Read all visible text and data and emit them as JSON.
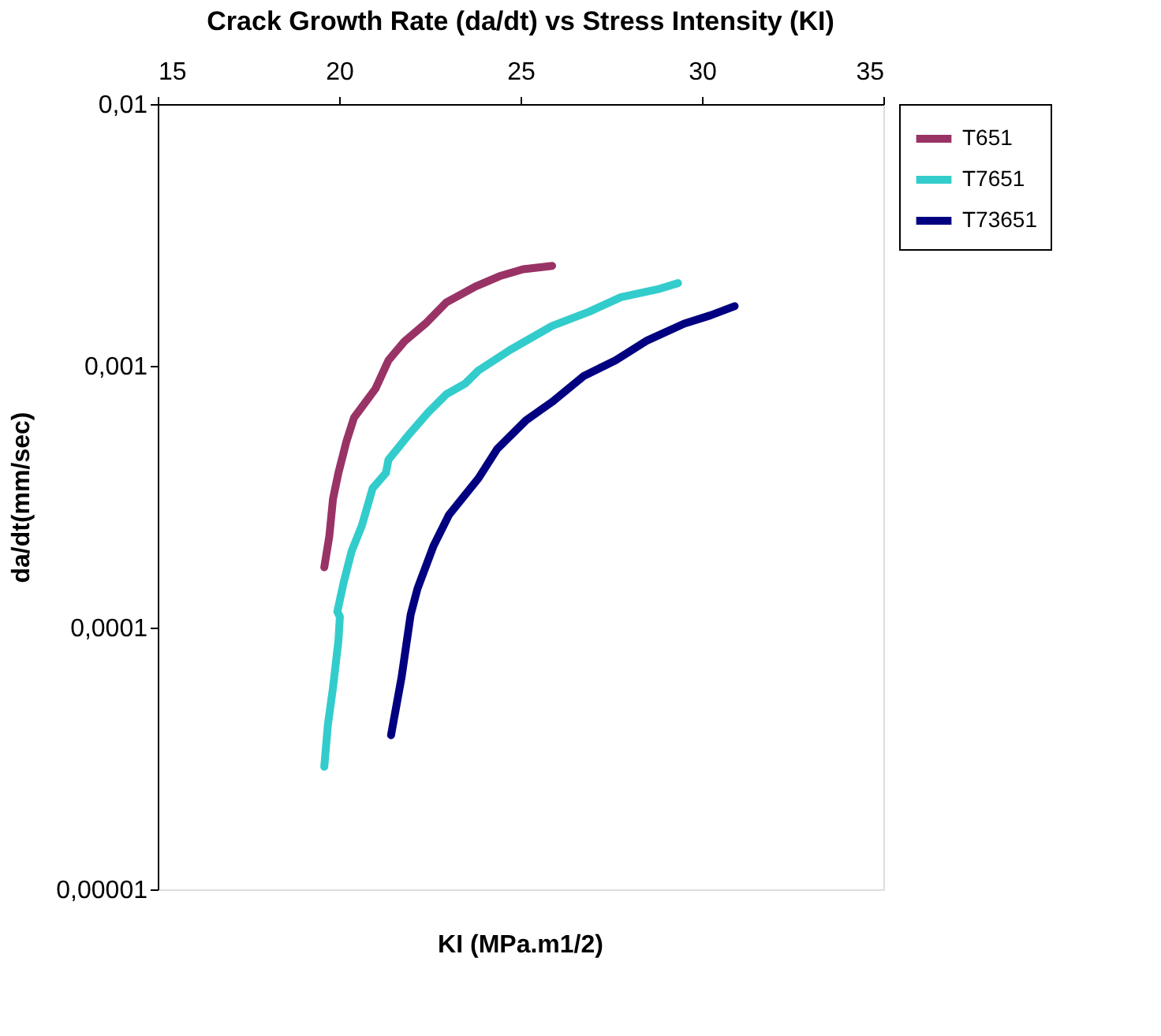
{
  "chart_data": {
    "type": "line",
    "title": "Crack Growth Rate (da/dt) vs Stress Intensity (KI)",
    "xlabel": "KI (MPa.m1/2)",
    "ylabel": "da/dt(mm/sec)",
    "log": "y",
    "grid": false,
    "legend": "right",
    "marker": "none",
    "line_style": "solid",
    "xlim": [
      15,
      35
    ],
    "xticks": [
      15,
      20,
      25,
      30,
      35
    ],
    "ylim": [
      1e-05,
      0.01
    ],
    "yticks": [
      {
        "value": 1e-05,
        "label": "0,00001"
      },
      {
        "value": 0.0001,
        "label": "0,0001"
      },
      {
        "value": 0.001,
        "label": "0,001"
      },
      {
        "value": 0.01,
        "label": "0,01"
      }
    ],
    "series": [
      {
        "name": "T651",
        "color": "#993366",
        "x": [
          19.59,
          19.73,
          19.83,
          19.98,
          20.2,
          20.41,
          21.0,
          21.36,
          21.8,
          22.38,
          22.96,
          23.76,
          24.42,
          25.07,
          25.87
        ],
        "values": [
          0.00017,
          0.000224,
          0.00031,
          0.00039,
          0.000514,
          0.000634,
          0.000817,
          0.00105,
          0.00124,
          0.00145,
          0.00175,
          0.00201,
          0.0022,
          0.00234,
          0.00241
        ]
      },
      {
        "name": "T7651",
        "color": "#33cccc",
        "x": [
          19.59,
          19.69,
          19.83,
          19.98,
          20.02,
          19.95,
          20.12,
          20.34,
          20.63,
          20.92,
          21.29,
          21.36,
          21.94,
          22.45,
          22.96,
          23.47,
          23.84,
          24.71,
          25.87,
          26.89,
          27.77,
          28.78,
          29.34
        ],
        "values": [
          2.94e-05,
          4.26e-05,
          5.89e-05,
          8.91e-05,
          0.00011,
          0.000115,
          0.000148,
          0.000195,
          0.000246,
          0.00034,
          0.00039,
          0.000438,
          0.00055,
          0.000663,
          0.00078,
          0.000855,
          0.00096,
          0.00115,
          0.00142,
          0.00161,
          0.00183,
          0.00196,
          0.00207
        ]
      },
      {
        "name": "T73651",
        "color": "#000080",
        "x": [
          21.43,
          21.72,
          21.97,
          22.16,
          22.6,
          23.03,
          23.84,
          24.35,
          25.15,
          25.87,
          26.75,
          27.62,
          28.49,
          29.51,
          30.24,
          30.9
        ],
        "values": [
          3.88e-05,
          6.45e-05,
          0.000112,
          0.000141,
          0.000205,
          0.00027,
          0.000372,
          0.00048,
          0.000619,
          0.000728,
          0.000916,
          0.00105,
          0.00125,
          0.00145,
          0.00156,
          0.00169
        ]
      }
    ]
  }
}
